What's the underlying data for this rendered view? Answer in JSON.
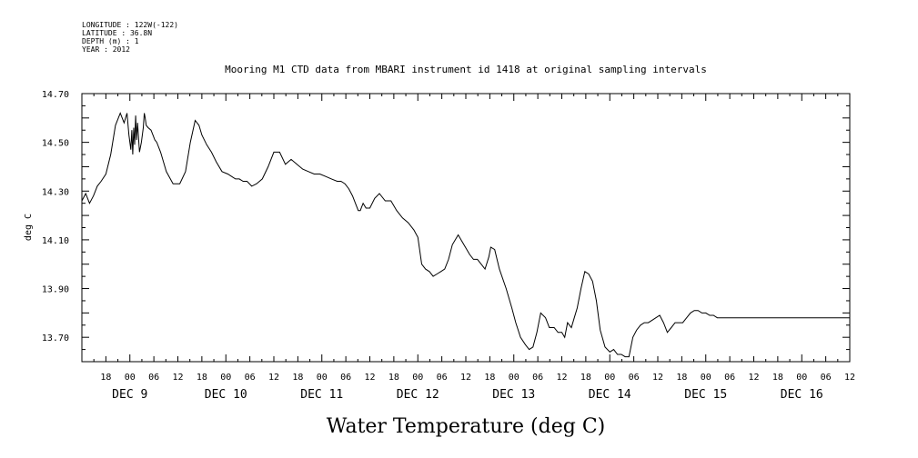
{
  "header": {
    "meta_lines": [
      "LONGITUDE : 122W(-122)",
      "LATITUDE : 36.8N",
      "DEPTH (m) : 1",
      "YEAR : 2012"
    ],
    "title": "Mooring M1 CTD data from MBARI instrument id 1418 at original sampling intervals"
  },
  "chart_data": {
    "type": "line",
    "title": "Mooring M1 CTD data from MBARI instrument id 1418 at original sampling intervals",
    "xlabel": "Water Temperature (deg C)",
    "ylabel": "deg C",
    "xlim": [
      8.5,
      16.5
    ],
    "ylim": [
      13.6,
      14.7
    ],
    "yticks": [
      "13.70",
      "13.90",
      "14.10",
      "14.30",
      "14.50",
      "14.70"
    ],
    "hour_labels": [
      "18",
      "00",
      "06",
      "12",
      "18",
      "00",
      "06",
      "12",
      "18",
      "00",
      "06",
      "12",
      "18",
      "00",
      "06",
      "12",
      "18",
      "00",
      "06",
      "12",
      "18",
      "00",
      "06",
      "12",
      "18",
      "00",
      "06",
      "12",
      "18",
      "00",
      "06",
      "12"
    ],
    "day_labels": [
      "DEC  9",
      "DEC 10",
      "DEC 11",
      "DEC 12",
      "DEC 13",
      "DEC 14",
      "DEC 15",
      "DEC 16"
    ],
    "grid": false,
    "series": [
      {
        "x": [
          8.5,
          8.54,
          8.58,
          8.62,
          8.66,
          8.7,
          8.75,
          8.8,
          8.85,
          8.9,
          8.94,
          8.97,
          8.99,
          9.01,
          9.02,
          9.03,
          9.04,
          9.05,
          9.06,
          9.07,
          9.08,
          9.1,
          9.12,
          9.14,
          9.15,
          9.16,
          9.17,
          9.19,
          9.22,
          9.24,
          9.26,
          9.28,
          9.32,
          9.38,
          9.45,
          9.52,
          9.58,
          9.63,
          9.68,
          9.72,
          9.75,
          9.8,
          9.85,
          9.9,
          9.96,
          10.02,
          10.06,
          10.1,
          10.14,
          10.18,
          10.22,
          10.27,
          10.32,
          10.38,
          10.44,
          10.5,
          10.56,
          10.62,
          10.68,
          10.74,
          10.8,
          10.86,
          10.92,
          10.98,
          11.04,
          11.1,
          11.16,
          11.2,
          11.24,
          11.28,
          11.32,
          11.36,
          11.38,
          11.4,
          11.43,
          11.46,
          11.5,
          11.55,
          11.6,
          11.66,
          11.72,
          11.78,
          11.84,
          11.9,
          11.96,
          12.0,
          12.04,
          12.08,
          12.12,
          12.16,
          12.2,
          12.24,
          12.28,
          12.32,
          12.36,
          12.42,
          12.48,
          12.54,
          12.58,
          12.62,
          12.66,
          12.7,
          12.74,
          12.76,
          12.8,
          12.85,
          12.92,
          12.98,
          13.02,
          13.07,
          13.12,
          13.16,
          13.2,
          13.24,
          13.28,
          13.33,
          13.37,
          13.42,
          13.46,
          13.5,
          13.53,
          13.56,
          13.6,
          13.63,
          13.66,
          13.7,
          13.74,
          13.78,
          13.82,
          13.86,
          13.9,
          13.95,
          14.0,
          14.04,
          14.08,
          14.12,
          14.16,
          14.2,
          14.24,
          14.28,
          14.32,
          14.36,
          14.4,
          14.44,
          14.48,
          14.52,
          14.56,
          14.6,
          14.64,
          14.68,
          14.72,
          14.76,
          14.8,
          14.84,
          14.88,
          14.92,
          14.96,
          15.0,
          15.04,
          15.08,
          15.12,
          15.16,
          15.2,
          15.24,
          15.28,
          15.32,
          15.36,
          15.4,
          15.44,
          15.48,
          15.52,
          15.56,
          15.6,
          15.64,
          15.68,
          15.72,
          15.76,
          15.8,
          15.84,
          15.88,
          15.92,
          15.96,
          16.0,
          16.04,
          16.08,
          16.12,
          16.16,
          16.2,
          16.24,
          16.28,
          16.32,
          16.36,
          16.4,
          16.44,
          16.48,
          16.5
        ],
        "y": [
          14.26,
          14.29,
          14.25,
          14.28,
          14.32,
          14.34,
          14.37,
          14.45,
          14.57,
          14.62,
          14.58,
          14.62,
          14.53,
          14.47,
          14.55,
          14.45,
          14.56,
          14.49,
          14.61,
          14.51,
          14.58,
          14.46,
          14.5,
          14.56,
          14.62,
          14.6,
          14.57,
          14.56,
          14.55,
          14.53,
          14.51,
          14.5,
          14.46,
          14.38,
          14.33,
          14.33,
          14.38,
          14.5,
          14.59,
          14.57,
          14.53,
          14.49,
          14.46,
          14.42,
          14.38,
          14.37,
          14.36,
          14.35,
          14.35,
          14.34,
          14.34,
          14.32,
          14.33,
          14.35,
          14.4,
          14.46,
          14.46,
          14.41,
          14.43,
          14.41,
          14.39,
          14.38,
          14.37,
          14.37,
          14.36,
          14.35,
          14.34,
          14.34,
          14.33,
          14.31,
          14.28,
          14.24,
          14.22,
          14.22,
          14.25,
          14.23,
          14.23,
          14.27,
          14.29,
          14.26,
          14.26,
          14.22,
          14.19,
          14.17,
          14.14,
          14.11,
          14.0,
          13.98,
          13.97,
          13.95,
          13.96,
          13.97,
          13.98,
          14.02,
          14.08,
          14.12,
          14.08,
          14.04,
          14.02,
          14.02,
          14.0,
          13.98,
          14.03,
          14.07,
          14.06,
          13.98,
          13.9,
          13.82,
          13.76,
          13.7,
          13.67,
          13.65,
          13.66,
          13.72,
          13.8,
          13.78,
          13.74,
          13.74,
          13.72,
          13.72,
          13.7,
          13.76,
          13.74,
          13.78,
          13.82,
          13.9,
          13.97,
          13.96,
          13.93,
          13.85,
          13.73,
          13.66,
          13.64,
          13.65,
          13.63,
          13.63,
          13.62,
          13.62,
          13.7,
          13.73,
          13.75,
          13.76,
          13.76,
          13.77,
          13.78,
          13.79,
          13.76,
          13.72,
          13.74,
          13.76,
          13.76,
          13.76,
          13.78,
          13.8,
          13.81,
          13.81,
          13.8,
          13.8,
          13.79,
          13.79,
          13.78,
          13.78,
          13.78,
          13.78,
          13.78,
          13.78,
          13.78,
          13.78,
          13.78,
          13.78,
          13.78,
          13.78,
          13.78,
          13.78,
          13.78,
          13.78,
          13.78,
          13.78,
          13.78,
          13.78,
          13.78,
          13.78,
          13.78,
          13.78,
          13.78,
          13.78,
          13.78,
          13.78,
          13.78,
          13.78,
          13.78,
          13.78,
          13.78,
          13.78,
          13.78,
          13.78
        ]
      }
    ]
  }
}
